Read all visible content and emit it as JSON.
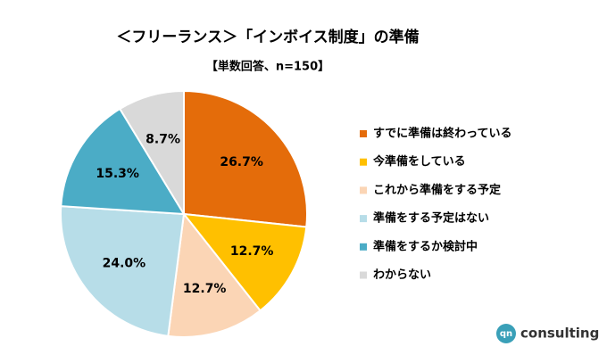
{
  "chart_data": {
    "type": "pie",
    "title": "＜フリーランス＞「インボイス制度」の準備",
    "subtitle": "【単数回答、n=150】",
    "categories": [
      "すでに準備は終わっている",
      "今準備をしている",
      "これから準備をする予定",
      "準備をする予定はない",
      "準備をするか検討中",
      "わからない"
    ],
    "values": [
      26.7,
      12.7,
      12.7,
      24.0,
      15.3,
      8.7
    ],
    "value_labels": [
      "26.7%",
      "12.7%",
      "12.7%",
      "24.0%",
      "15.3%",
      "8.7%"
    ],
    "colors": [
      "#e46c0a",
      "#ffc000",
      "#fbd5b5",
      "#b7dde8",
      "#4bacc6",
      "#d9d9d9"
    ],
    "legend": "right"
  },
  "brand": {
    "mark": "qn",
    "name": "consulting"
  }
}
